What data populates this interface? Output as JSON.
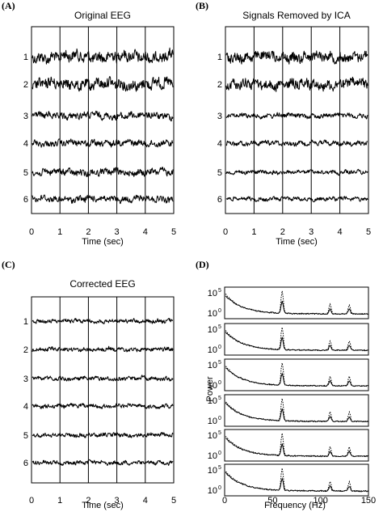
{
  "panels": {
    "A": {
      "letter": "(A)",
      "title": "Original EEG"
    },
    "B": {
      "letter": "(B)",
      "title": "Signals Removed by ICA"
    },
    "C": {
      "letter": "(C)",
      "title": "Corrected EEG"
    },
    "D": {
      "letter": "(D)",
      "title": ""
    }
  },
  "chart_data": [
    {
      "id": "A",
      "type": "line",
      "title": "Original EEG",
      "xlabel": "Time (sec)",
      "ylabel": "",
      "xlim": [
        0,
        5
      ],
      "xticks": [
        "0",
        "1",
        "2",
        "3",
        "4",
        "5"
      ],
      "channels": [
        "1",
        "2",
        "3",
        "4",
        "5",
        "6"
      ],
      "channel_amplitude": [
        1.0,
        1.0,
        0.6,
        0.55,
        0.6,
        0.55
      ],
      "grid": "vertical lines at each second"
    },
    {
      "id": "B",
      "type": "line",
      "title": "Signals Removed by ICA",
      "xlabel": "Time (sec)",
      "ylabel": "",
      "xlim": [
        0,
        5
      ],
      "xticks": [
        "0",
        "1",
        "2",
        "3",
        "4",
        "5"
      ],
      "channels": [
        "1",
        "2",
        "3",
        "4",
        "5",
        "6"
      ],
      "channel_amplitude": [
        0.9,
        0.9,
        0.4,
        0.4,
        0.35,
        0.35
      ],
      "grid": "vertical lines at each second"
    },
    {
      "id": "C",
      "type": "line",
      "title": "Corrected EEG",
      "xlabel": "Time (sec)",
      "ylabel": "",
      "xlim": [
        0,
        5
      ],
      "xticks": [
        "0",
        "1",
        "2",
        "3",
        "4",
        "5"
      ],
      "channels": [
        "1",
        "2",
        "3",
        "4",
        "5",
        "6"
      ],
      "channel_amplitude": [
        0.35,
        0.35,
        0.35,
        0.35,
        0.35,
        0.35
      ],
      "grid": "vertical lines at each second"
    },
    {
      "id": "D",
      "type": "line",
      "title": "",
      "xlabel": "Frequency (Hz)",
      "ylabel": "Power",
      "xlim": [
        0,
        150
      ],
      "xticks": [
        "0",
        "50",
        "100",
        "150"
      ],
      "ytick_labels": [
        "10",
        "10"
      ],
      "ytick_exponents": [
        "0",
        "5"
      ],
      "yscale": "log",
      "n_subplots": 6,
      "series": [
        {
          "style": "dotted",
          "peaks_hz": [
            60,
            110,
            130
          ]
        },
        {
          "style": "solid",
          "peaks_hz": [
            60,
            110,
            130
          ]
        }
      ]
    }
  ]
}
